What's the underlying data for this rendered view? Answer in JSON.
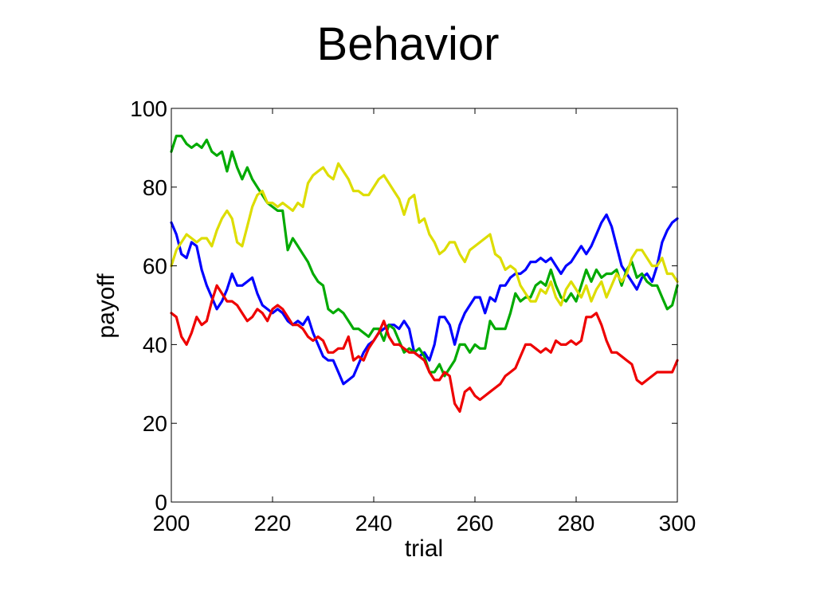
{
  "slide": {
    "title": "Behavior"
  },
  "chart_data": {
    "type": "line",
    "title": "",
    "xlabel": "trial",
    "ylabel": "payoff",
    "xlim": [
      200,
      300
    ],
    "ylim": [
      0,
      100
    ],
    "xticks": [
      200,
      220,
      240,
      260,
      280,
      300
    ],
    "yticks": [
      0,
      20,
      40,
      60,
      80,
      100
    ],
    "grid": false,
    "legend": "none",
    "x": [
      200,
      201,
      202,
      203,
      204,
      205,
      206,
      207,
      208,
      209,
      210,
      211,
      212,
      213,
      214,
      215,
      216,
      217,
      218,
      219,
      220,
      221,
      222,
      223,
      224,
      225,
      226,
      227,
      228,
      229,
      230,
      231,
      232,
      233,
      234,
      235,
      236,
      237,
      238,
      239,
      240,
      241,
      242,
      243,
      244,
      245,
      246,
      247,
      248,
      249,
      250,
      251,
      252,
      253,
      254,
      255,
      256,
      257,
      258,
      259,
      260,
      261,
      262,
      263,
      264,
      265,
      266,
      267,
      268,
      269,
      270,
      271,
      272,
      273,
      274,
      275,
      276,
      277,
      278,
      279,
      280,
      281,
      282,
      283,
      284,
      285,
      286,
      287,
      288,
      289,
      290,
      291,
      292,
      293,
      294,
      295,
      296,
      297,
      298,
      299,
      300
    ],
    "series": [
      {
        "color": "#0000ff",
        "values": [
          71,
          68,
          63,
          62,
          66,
          65,
          59,
          55,
          52,
          49,
          51,
          54,
          58,
          55,
          55,
          56,
          57,
          53,
          50,
          49,
          48,
          49,
          48,
          46,
          45,
          46,
          45,
          47,
          43,
          40,
          37,
          36,
          36,
          33,
          30,
          31,
          32,
          35,
          38,
          40,
          41,
          43,
          44,
          45,
          45,
          44,
          46,
          44,
          38,
          37,
          38,
          36,
          40,
          47,
          47,
          45,
          40,
          45,
          48,
          50,
          52,
          52,
          48,
          52,
          51,
          55,
          55,
          57,
          58,
          58,
          59,
          61,
          61,
          62,
          61,
          62,
          60,
          58,
          60,
          61,
          63,
          65,
          63,
          65,
          68,
          71,
          73,
          70,
          65,
          60,
          58,
          56,
          54,
          57,
          58,
          56,
          60,
          66,
          69,
          71,
          72
        ]
      },
      {
        "color": "#00aa00",
        "values": [
          89,
          93,
          93,
          91,
          90,
          91,
          90,
          92,
          89,
          88,
          89,
          84,
          89,
          85,
          82,
          85,
          82,
          80,
          78,
          76,
          75,
          74,
          74,
          64,
          67,
          65,
          63,
          61,
          58,
          56,
          55,
          49,
          48,
          49,
          48,
          46,
          44,
          44,
          43,
          42,
          44,
          44,
          41,
          45,
          44,
          41,
          38,
          39,
          38,
          39,
          37,
          33,
          33,
          35,
          32,
          34,
          36,
          40,
          40,
          38,
          40,
          39,
          39,
          46,
          44,
          44,
          44,
          48,
          53,
          51,
          52,
          52,
          55,
          56,
          55,
          59,
          55,
          52,
          51,
          53,
          51,
          55,
          59,
          56,
          59,
          57,
          58,
          58,
          59,
          55,
          59,
          61,
          57,
          58,
          56,
          55,
          55,
          52,
          49,
          50,
          55
        ]
      },
      {
        "color": "#dddd00",
        "values": [
          60,
          64,
          66,
          68,
          67,
          66,
          67,
          67,
          65,
          69,
          72,
          74,
          72,
          66,
          65,
          70,
          75,
          78,
          79,
          76,
          76,
          75,
          76,
          75,
          74,
          76,
          75,
          81,
          83,
          84,
          85,
          83,
          82,
          86,
          84,
          82,
          79,
          79,
          78,
          78,
          80,
          82,
          83,
          81,
          79,
          77,
          73,
          77,
          78,
          71,
          72,
          68,
          66,
          63,
          64,
          66,
          66,
          63,
          61,
          64,
          65,
          66,
          67,
          68,
          63,
          62,
          59,
          60,
          59,
          55,
          53,
          51,
          51,
          54,
          53,
          56,
          52,
          50,
          54,
          56,
          54,
          52,
          55,
          51,
          54,
          56,
          52,
          55,
          58,
          56,
          58,
          62,
          64,
          64,
          62,
          60,
          60,
          62,
          58,
          58,
          56
        ]
      },
      {
        "color": "#ee0000",
        "values": [
          48,
          47,
          42,
          40,
          43,
          47,
          45,
          46,
          51,
          55,
          53,
          51,
          51,
          50,
          48,
          46,
          47,
          49,
          48,
          46,
          49,
          50,
          49,
          47,
          45,
          45,
          44,
          42,
          41,
          42,
          41,
          38,
          38,
          39,
          39,
          42,
          36,
          37,
          36,
          39,
          41,
          43,
          46,
          42,
          40,
          40,
          39,
          38,
          38,
          37,
          36,
          33,
          31,
          31,
          33,
          32,
          25,
          23,
          28,
          29,
          27,
          26,
          27,
          28,
          29,
          30,
          32,
          33,
          34,
          37,
          40,
          40,
          39,
          38,
          39,
          38,
          41,
          40,
          40,
          41,
          40,
          41,
          47,
          47,
          48,
          45,
          41,
          38,
          38,
          37,
          36,
          35,
          31,
          30,
          31,
          32,
          33,
          33,
          33,
          33,
          36
        ]
      }
    ]
  }
}
